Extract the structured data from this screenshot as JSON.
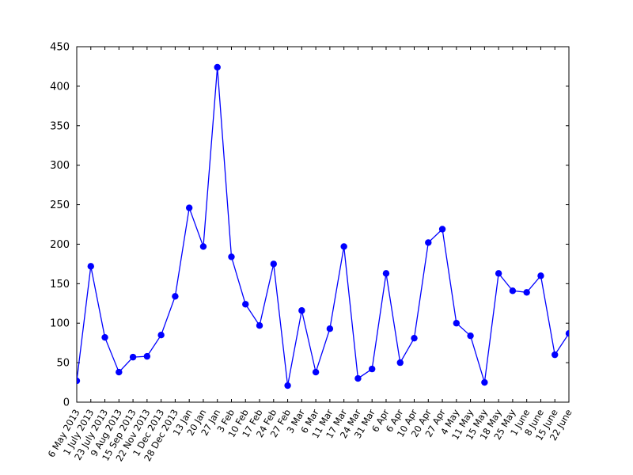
{
  "chart_data": {
    "type": "line",
    "title": "",
    "xlabel": "",
    "ylabel": "",
    "ylim": [
      0,
      450
    ],
    "yticks": [
      0,
      50,
      100,
      150,
      200,
      250,
      300,
      350,
      400,
      450
    ],
    "grid": false,
    "legend": "none",
    "line_color": "#0000ff",
    "marker": "circle",
    "marker_color": "#0000ff",
    "frame_color": "#000000",
    "categories": [
      "6 May 2013",
      "1 July 2013",
      "23 July 2013",
      "9 Aug 2013",
      "15 Sep 2013",
      "22 Nov 2013",
      "1 Dec 2013",
      "28 Dec 2013",
      "13 Jan",
      "20 Jan",
      "27 Jan",
      "3 Feb",
      "10 Feb",
      "17 Feb",
      "24 Feb",
      "27 Feb",
      "3 Mar",
      "6 Mar",
      "11 Mar",
      "17 Mar",
      "24 Mar",
      "31 Mar",
      "6 Apr",
      "6 Apr",
      "10 Apr",
      "20 Apr",
      "27 Apr",
      "4 May",
      "11 May",
      "15 May",
      "18 May",
      "25 May",
      "1 June",
      "8 June",
      "15 June",
      "22 June"
    ],
    "values": [
      27,
      172,
      82,
      38,
      57,
      58,
      85,
      134,
      246,
      197,
      424,
      184,
      124,
      97,
      175,
      21,
      116,
      38,
      93,
      197,
      30,
      42,
      163,
      50,
      81,
      202,
      219,
      100,
      84,
      25,
      163,
      141,
      139,
      160,
      60,
      87
    ]
  }
}
